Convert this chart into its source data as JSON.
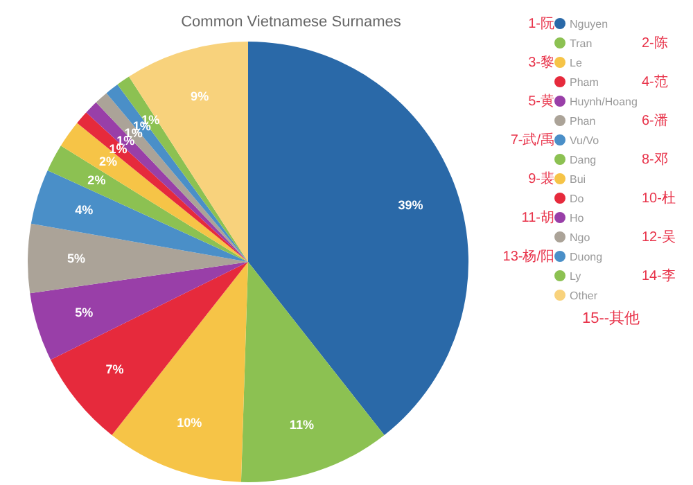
{
  "chart_data": {
    "type": "pie",
    "title": "Common Vietnamese Surnames",
    "categories": [
      "Nguyen",
      "Tran",
      "Le",
      "Pham",
      "Huynh/Hoang",
      "Phan",
      "Vu/Vo",
      "Dang",
      "Bui",
      "Do",
      "Ho",
      "Ngo",
      "Duong",
      "Ly",
      "Other"
    ],
    "values": [
      39,
      11,
      10,
      7,
      5,
      5,
      4,
      2,
      2,
      1,
      1,
      1,
      1,
      1,
      9
    ],
    "colors": [
      "#2a69a8",
      "#8cc152",
      "#f6c447",
      "#e62a3c",
      "#993fa8",
      "#aba398",
      "#4a8fc8",
      "#8cc152",
      "#f6c447",
      "#e62a3c",
      "#993fa8",
      "#aba398",
      "#4a8fc8",
      "#8cc152",
      "#f8d27c"
    ],
    "value_labels": [
      "39%",
      "11%",
      "10%",
      "7%",
      "5%",
      "5%",
      "4%",
      "2%",
      "2%",
      "1%",
      "1%",
      "1%",
      "1%",
      "1%",
      "9%"
    ],
    "legend": "right",
    "annotations": [
      "1-阮",
      "2-陈",
      "3-黎",
      "4-范",
      "5-黄",
      "6-潘",
      "7-武/禹",
      "8-邓",
      "9-裴",
      "10-杜",
      "11-胡",
      "12-吴",
      "13-杨/阳",
      "14-李",
      "15--其他"
    ]
  }
}
